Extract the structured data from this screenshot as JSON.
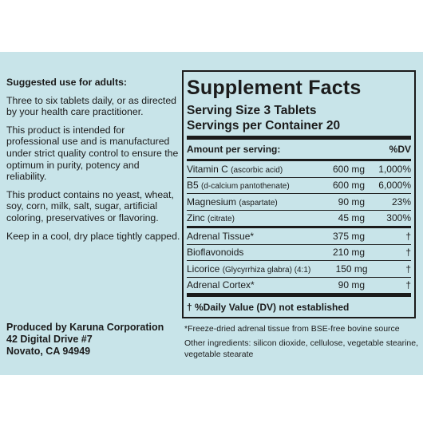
{
  "left": {
    "heading": "Suggested use for adults:",
    "paragraphs": [
      "Three to six tablets daily, or as directed by your health care practitioner.",
      "This product is intended for professional use and is manufactured under strict quality control to ensure the optimum in purity, potency and reliability.",
      "This product contains no yeast, wheat, soy, corn, milk, salt, sugar, artificial coloring, preservatives or flavoring.",
      "Keep in a cool, dry place tightly capped."
    ],
    "producer": [
      "Produced by Karuna Corporation",
      "42 Digital Drive #7",
      "Novato, CA 94949"
    ]
  },
  "facts": {
    "title": "Supplement Facts",
    "serving_size": "Serving Size 3 Tablets",
    "servings_per_container": "Servings per Container 20",
    "header": {
      "amount": "Amount per serving:",
      "dv": "%DV"
    },
    "groups": [
      [
        {
          "name": "Vitamin C",
          "detail": "(ascorbic acid)",
          "amount": "600 mg",
          "dv": "1,000%"
        },
        {
          "name": "B5",
          "detail": "(d-calcium pantothenate)",
          "amount": "600 mg",
          "dv": "6,000%"
        },
        {
          "name": "Magnesium",
          "detail": "(aspartate)",
          "amount": "90 mg",
          "dv": "23%"
        },
        {
          "name": "Zinc",
          "detail": "(citrate)",
          "amount": "45 mg",
          "dv": "300%"
        }
      ],
      [
        {
          "name": "Adrenal Tissue*",
          "amount": "375 mg",
          "dv": "†"
        },
        {
          "name": "Bioflavonoids",
          "amount": "210 mg",
          "dv": "†"
        },
        {
          "name": "Licorice",
          "detail": "(Glycyrrhiza glabra) (4:1)",
          "amount": "150 mg",
          "dv": "†"
        },
        {
          "name": "Adrenal Cortex*",
          "amount": "90 mg",
          "dv": "†"
        }
      ]
    ],
    "footer": "† %Daily Value (DV) not established",
    "notes": [
      "*Freeze-dried adrenal tissue from BSE-free bovine source",
      "Other ingredients: silicon dioxide, cellulose, vegetable stearine, vegetable stearate"
    ]
  }
}
